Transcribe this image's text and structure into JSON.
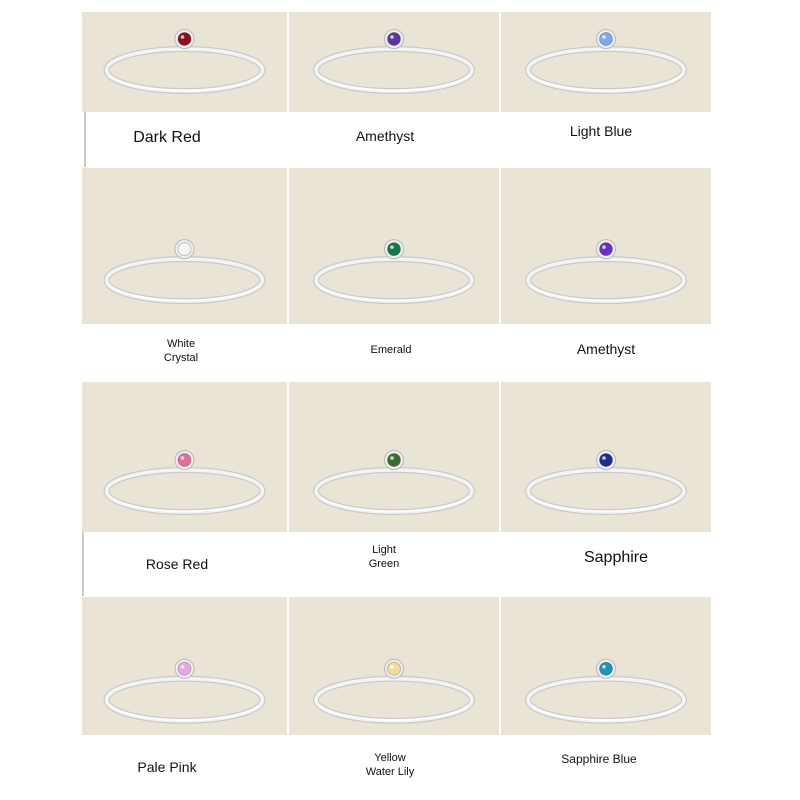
{
  "colors": {
    "tile_background": "#e9e4d6",
    "ring_metal": "#f4f4f4",
    "page_background": "#ffffff"
  },
  "rings": [
    {
      "label": "Dark Red",
      "gem_color": "#8e1022"
    },
    {
      "label": "Amethyst",
      "gem_color": "#5a35a0"
    },
    {
      "label": "Light Blue",
      "gem_color": "#7fa8e6"
    },
    {
      "label": "White\nCrystal",
      "gem_color": "#f3f5f8"
    },
    {
      "label": "Emerald",
      "gem_color": "#137a45"
    },
    {
      "label": "Amethyst",
      "gem_color": "#6a2fc4"
    },
    {
      "label": "Rose Red",
      "gem_color": "#e0709a"
    },
    {
      "label": "Light\nGreen",
      "gem_color": "#3d6a2e"
    },
    {
      "label": "Sapphire",
      "gem_color": "#1d2f8f"
    },
    {
      "label": "Pale Pink",
      "gem_color": "#e8a9e0"
    },
    {
      "label": "Yellow\nWater Lily",
      "gem_color": "#f1dc9e"
    },
    {
      "label": "Sapphire Blue",
      "gem_color": "#1e93b8"
    }
  ]
}
